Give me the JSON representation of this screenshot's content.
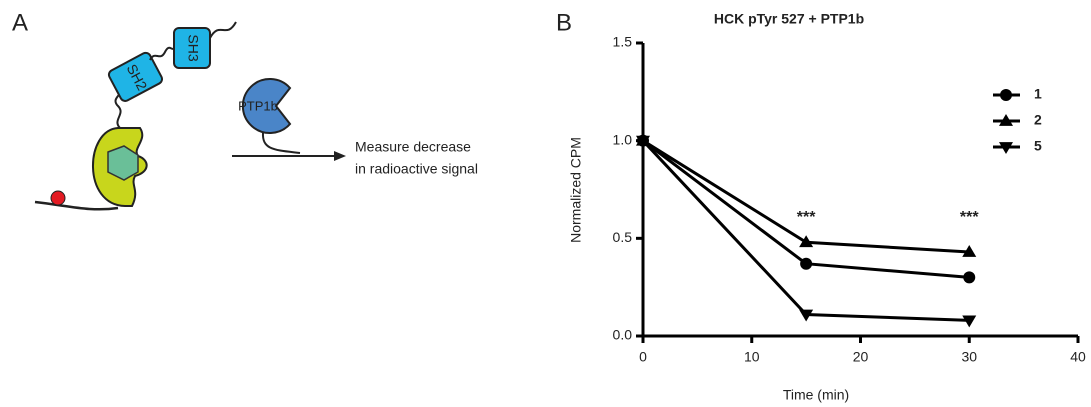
{
  "panel_labels": [
    "A",
    "B"
  ],
  "diagram": {
    "domains": [
      "SH3",
      "SH2"
    ],
    "enzyme": "PTP1b",
    "readout": [
      "Measure decrease",
      "in radioactive signal"
    ]
  },
  "chart_data": {
    "type": "line",
    "title": "HCK pTyr 527 + PTP1b",
    "x_label": "Time (min)",
    "y_label": "Normalized CPM",
    "x": [
      0,
      15,
      30
    ],
    "series": [
      {
        "name": "1",
        "color": "#000000",
        "marker": "circle",
        "values": [
          1.0,
          0.37,
          0.3
        ]
      },
      {
        "name": "2",
        "color": "#000000",
        "marker": "triangle-up",
        "values": [
          1.0,
          0.48,
          0.43
        ]
      },
      {
        "name": "5",
        "color": "#000000",
        "marker": "triangle-down",
        "values": [
          1.0,
          0.11,
          0.08
        ]
      }
    ],
    "annotations": [
      {
        "text": "***",
        "x": 15
      },
      {
        "text": "***",
        "x": 30
      }
    ],
    "xlim": [
      0,
      40
    ],
    "xticks": [
      0,
      10,
      20,
      30,
      40
    ],
    "ylim": [
      0,
      1.5
    ],
    "yticks": [
      {
        "value": 0,
        "label": "0.0"
      },
      {
        "value": 0.5,
        "label": "0.5"
      },
      {
        "value": 1,
        "label": "1.0"
      },
      {
        "value": 1.5,
        "label": "1.5"
      }
    ],
    "legend": "upper right"
  }
}
